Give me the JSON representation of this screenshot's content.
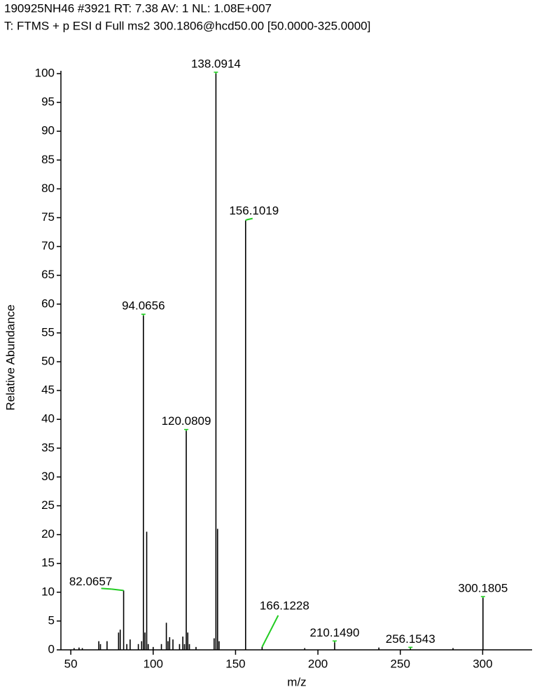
{
  "chart_data": {
    "type": "stick",
    "title": "190925NH46 #3921 RT: 7.38 AV: 1 NL: 1.08E+007",
    "subtitle": "T: FTMS + p ESI d Full ms2 300.1806@hcd50.00 [50.0000-325.0000]",
    "x_label": "m/z",
    "y_label": "Relative Abundance",
    "color": "#000000",
    "leader_color": "#22cc22",
    "x": [
      52,
      55,
      57,
      67,
      68,
      72,
      79,
      80,
      82.0657,
      84,
      86,
      91,
      93,
      94.0656,
      95,
      96.07,
      97,
      100,
      105,
      108,
      109,
      110,
      112,
      116,
      118,
      119,
      120.0809,
      121,
      122,
      126,
      137,
      138.0914,
      139.09,
      140,
      156.1019,
      166.1228,
      192,
      210.149,
      237,
      256.1543,
      282,
      300.1805
    ],
    "values": [
      0.3,
      0.4,
      0.3,
      1.5,
      1,
      1.5,
      3,
      3.5,
      10.3,
      1,
      1.8,
      1,
      1.5,
      58,
      3,
      20.5,
      1,
      0.5,
      1,
      4.7,
      1.5,
      2.2,
      1.8,
      1,
      2.3,
      1,
      38,
      3,
      1,
      0.5,
      2,
      100,
      21,
      1.5,
      74.5,
      0.5,
      0.3,
      1.3,
      0.4,
      0.2,
      0.3,
      9
    ],
    "labels": [
      null,
      null,
      null,
      null,
      null,
      null,
      null,
      null,
      "82.0657",
      null,
      null,
      null,
      null,
      "94.0656",
      null,
      null,
      null,
      null,
      null,
      null,
      null,
      null,
      null,
      null,
      null,
      null,
      "120.0809",
      null,
      null,
      null,
      null,
      "138.0914",
      null,
      null,
      "156.1019",
      "166.1228",
      null,
      "210.1490",
      null,
      "256.1543",
      null,
      "300.1805"
    ],
    "xlim": [
      44,
      330
    ],
    "ylim": [
      0,
      100
    ],
    "xticks": [
      50,
      100,
      150,
      200,
      250,
      300
    ],
    "yticks": [
      0,
      5,
      10,
      15,
      20,
      25,
      30,
      35,
      40,
      45,
      50,
      55,
      60,
      65,
      70,
      75,
      80,
      85,
      90,
      95,
      100
    ]
  }
}
